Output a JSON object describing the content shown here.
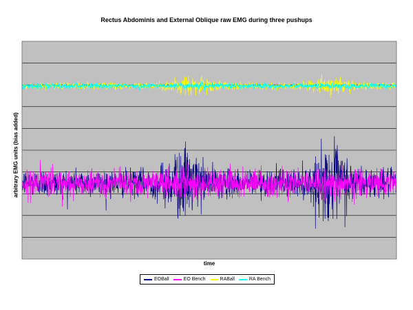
{
  "chart_data": {
    "type": "line",
    "title": "Rectus Abdominis and External Oblique raw EMG during three pushups",
    "xlabel": "time",
    "ylabel": "arbitrary EMG units (bias added)",
    "ylim": [
      0,
      10
    ],
    "grid": true,
    "plot_background": "#c0c0c0",
    "legend_position": "bottom",
    "series": [
      {
        "name": "EOBall",
        "color": "#000080",
        "baseline": 3.5,
        "noise_amplitude": 0.55,
        "bursts": [
          {
            "center": 0.43,
            "width": 0.05,
            "gain": 2.7
          },
          {
            "center": 0.83,
            "width": 0.05,
            "gain": 2.9
          }
        ]
      },
      {
        "name": "EO Bench",
        "color": "#ff00ff",
        "baseline": 3.5,
        "noise_amplitude": 0.55,
        "bursts": [
          {
            "center": 0.43,
            "width": 0.05,
            "gain": 1.2
          },
          {
            "center": 0.83,
            "width": 0.05,
            "gain": 1.2
          }
        ]
      },
      {
        "name": "RABall",
        "color": "#ffff00",
        "baseline": 7.95,
        "noise_amplitude": 0.14,
        "bursts": [
          {
            "center": 0.45,
            "width": 0.06,
            "gain": 3.2
          },
          {
            "center": 0.83,
            "width": 0.05,
            "gain": 3.0
          }
        ]
      },
      {
        "name": "RA Bench",
        "color": "#00ffff",
        "baseline": 7.95,
        "noise_amplitude": 0.12,
        "bursts": [
          {
            "center": 0.45,
            "width": 0.06,
            "gain": 1.2
          },
          {
            "center": 0.83,
            "width": 0.05,
            "gain": 1.2
          }
        ]
      }
    ]
  }
}
